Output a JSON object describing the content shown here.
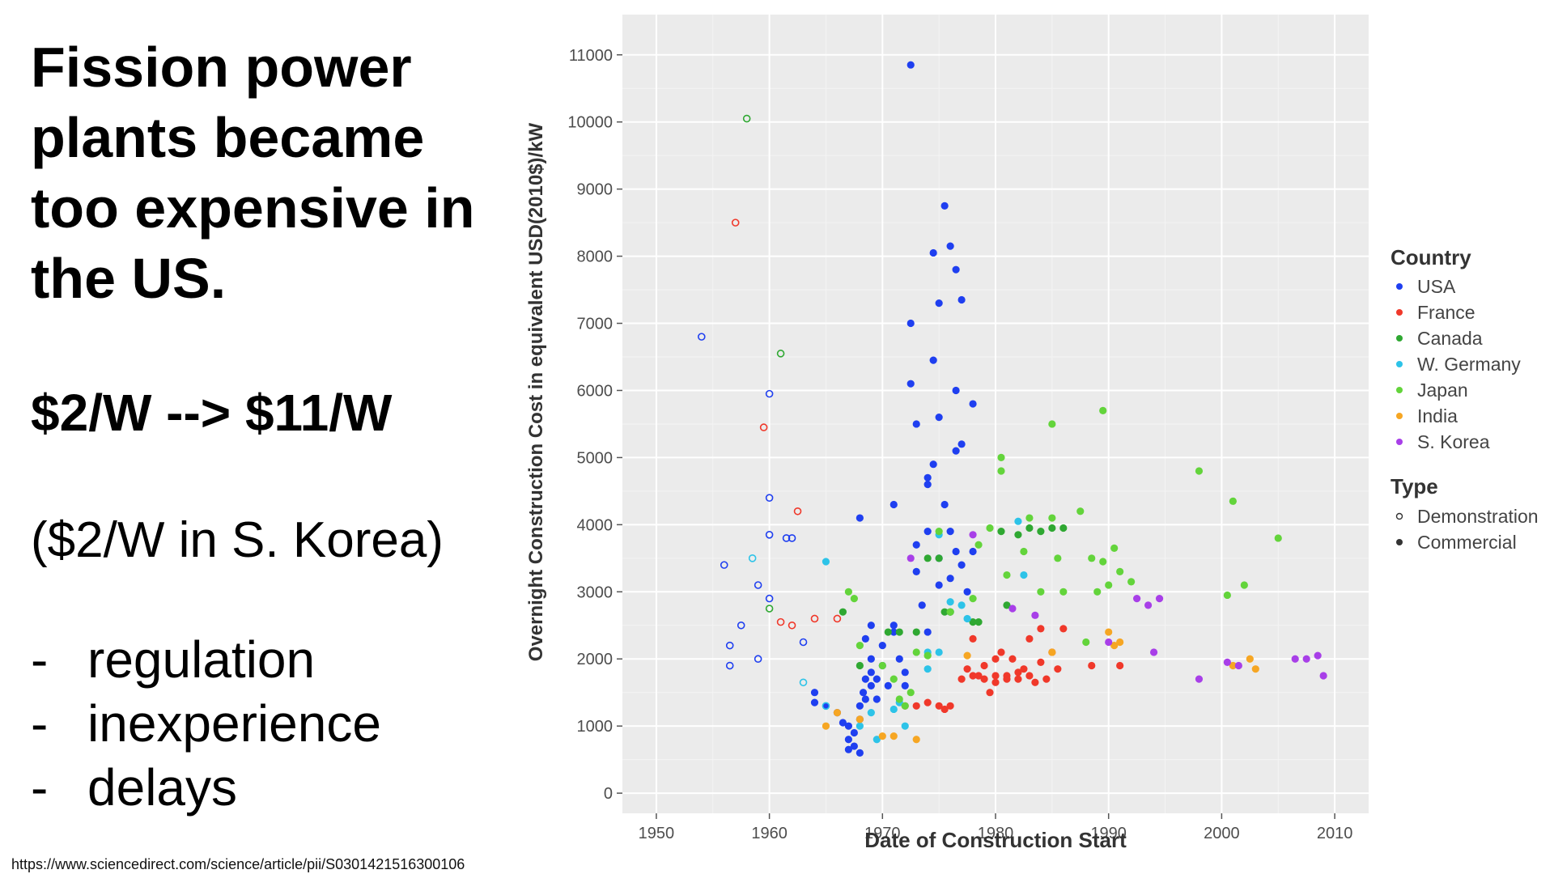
{
  "slide": {
    "headline": [
      "Fission power",
      "plants became",
      "too expensive in",
      "the US."
    ],
    "cost_change": "$2/W --> $11/W",
    "korea_note": "($2/W in S. Korea)",
    "reasons": [
      "regulation",
      "inexperience",
      "delays"
    ],
    "bullet": "-",
    "source_url": "https://www.sciencedirect.com/science/article/pii/S0301421516300106"
  },
  "chart_data": {
    "type": "scatter",
    "title": "",
    "xlabel": "Date of Construction Start",
    "ylabel": "Overnight Construction Cost in equivalent USD(2010$)/kW",
    "xlim": [
      1947,
      2013
    ],
    "ylim": [
      -300,
      11600
    ],
    "xticks": [
      1950,
      1960,
      1970,
      1980,
      1990,
      2000,
      2010
    ],
    "yticks": [
      0,
      1000,
      2000,
      3000,
      4000,
      5000,
      6000,
      7000,
      8000,
      9000,
      10000,
      11000
    ],
    "grid": true,
    "background": "#ebebeb",
    "legend": {
      "country_title": "Country",
      "type_title": "Type",
      "type_labels": [
        "Demonstration",
        "Commercial"
      ],
      "placement": "right"
    },
    "series": [
      {
        "name": "USA",
        "color": "#1f3ff0",
        "demonstration": [
          [
            1954,
            6800
          ],
          [
            1956,
            3400
          ],
          [
            1956.5,
            2200
          ],
          [
            1956.5,
            1900
          ],
          [
            1957.5,
            2500
          ],
          [
            1959,
            3100
          ],
          [
            1959,
            2000
          ],
          [
            1960,
            5950
          ],
          [
            1960,
            4400
          ],
          [
            1960,
            3850
          ],
          [
            1960,
            2900
          ],
          [
            1961.5,
            3800
          ],
          [
            1962,
            3800
          ],
          [
            1963,
            2250
          ]
        ],
        "commercial": [
          [
            1964,
            1500
          ],
          [
            1964,
            1350
          ],
          [
            1965,
            1300
          ],
          [
            1966,
            1200
          ],
          [
            1966.5,
            1050
          ],
          [
            1967,
            1000
          ],
          [
            1967,
            800
          ],
          [
            1967,
            650
          ],
          [
            1967.5,
            900
          ],
          [
            1967.5,
            700
          ],
          [
            1968,
            600
          ],
          [
            1968,
            1300
          ],
          [
            1968,
            1100
          ],
          [
            1968,
            4100
          ],
          [
            1968.3,
            1500
          ],
          [
            1968.5,
            1700
          ],
          [
            1968.5,
            1400
          ],
          [
            1968.5,
            2300
          ],
          [
            1969,
            1800
          ],
          [
            1969,
            1600
          ],
          [
            1969,
            2000
          ],
          [
            1969,
            2500
          ],
          [
            1969.5,
            1700
          ],
          [
            1969.5,
            1400
          ],
          [
            1970,
            1900
          ],
          [
            1970,
            2200
          ],
          [
            1970.5,
            1600
          ],
          [
            1971,
            2500
          ],
          [
            1971,
            2400
          ],
          [
            1971,
            4300
          ],
          [
            1971.5,
            2000
          ],
          [
            1972,
            1800
          ],
          [
            1972,
            1600
          ],
          [
            1972.5,
            10850
          ],
          [
            1972.5,
            7000
          ],
          [
            1972.5,
            6100
          ],
          [
            1973,
            5500
          ],
          [
            1973,
            3700
          ],
          [
            1973,
            3300
          ],
          [
            1973.5,
            2800
          ],
          [
            1974,
            3900
          ],
          [
            1974,
            4700
          ],
          [
            1974,
            4600
          ],
          [
            1974,
            2400
          ],
          [
            1974.5,
            6450
          ],
          [
            1974.5,
            8050
          ],
          [
            1974.5,
            4900
          ],
          [
            1975,
            5600
          ],
          [
            1975,
            7300
          ],
          [
            1975,
            3500
          ],
          [
            1975,
            3100
          ],
          [
            1975.5,
            8750
          ],
          [
            1975.5,
            4300
          ],
          [
            1976,
            8150
          ],
          [
            1976,
            3900
          ],
          [
            1976,
            3200
          ],
          [
            1976,
            2700
          ],
          [
            1976.5,
            7800
          ],
          [
            1976.5,
            6000
          ],
          [
            1976.5,
            5100
          ],
          [
            1976.5,
            3600
          ],
          [
            1977,
            5200
          ],
          [
            1977,
            7350
          ],
          [
            1977,
            3400
          ],
          [
            1977.5,
            3000
          ],
          [
            1978,
            5800
          ],
          [
            1978,
            3600
          ]
        ]
      },
      {
        "name": "France",
        "color": "#f0382a",
        "demonstration": [
          [
            1957,
            8500
          ],
          [
            1959.5,
            5450
          ],
          [
            1962.5,
            4200
          ],
          [
            1961,
            2550
          ],
          [
            1962,
            2500
          ],
          [
            1964,
            2600
          ],
          [
            1966,
            2600
          ]
        ],
        "commercial": [
          [
            1972,
            1300
          ],
          [
            1973,
            1300
          ],
          [
            1974,
            1350
          ],
          [
            1975,
            1300
          ],
          [
            1975.5,
            1250
          ],
          [
            1976,
            1300
          ],
          [
            1977,
            1700
          ],
          [
            1977.5,
            1850
          ],
          [
            1978,
            1750
          ],
          [
            1978,
            2300
          ],
          [
            1978.5,
            1750
          ],
          [
            1979,
            1700
          ],
          [
            1979,
            1900
          ],
          [
            1979.5,
            1500
          ],
          [
            1980,
            2000
          ],
          [
            1980,
            1750
          ],
          [
            1980,
            1650
          ],
          [
            1980.5,
            2100
          ],
          [
            1981,
            1700
          ],
          [
            1981,
            1750
          ],
          [
            1981.5,
            2000
          ],
          [
            1982,
            1800
          ],
          [
            1982,
            1700
          ],
          [
            1982.5,
            1850
          ],
          [
            1983,
            2300
          ],
          [
            1983,
            1750
          ],
          [
            1983.5,
            1650
          ],
          [
            1984,
            2450
          ],
          [
            1984,
            1950
          ],
          [
            1984.5,
            1700
          ],
          [
            1985,
            2100
          ],
          [
            1985.5,
            1850
          ],
          [
            1986,
            2450
          ],
          [
            1988.5,
            1900
          ],
          [
            1991,
            1900
          ]
        ]
      },
      {
        "name": "Canada",
        "color": "#2fa832",
        "demonstration": [
          [
            1958,
            10050
          ],
          [
            1960,
            2750
          ],
          [
            1961,
            6550
          ]
        ],
        "commercial": [
          [
            1966.5,
            2700
          ],
          [
            1968,
            1900
          ],
          [
            1970.5,
            2400
          ],
          [
            1971.5,
            2400
          ],
          [
            1973,
            2400
          ],
          [
            1974,
            3500
          ],
          [
            1975,
            3500
          ],
          [
            1975.5,
            2700
          ],
          [
            1976,
            2700
          ],
          [
            1978,
            2550
          ],
          [
            1978.5,
            2550
          ],
          [
            1980.5,
            3900
          ],
          [
            1981,
            2800
          ],
          [
            1982,
            3850
          ],
          [
            1983,
            3950
          ],
          [
            1984,
            3900
          ],
          [
            1985,
            3950
          ],
          [
            1986,
            3950
          ]
        ]
      },
      {
        "name": "W. Germany",
        "color": "#2dc3e8",
        "demonstration": [
          [
            1958.5,
            3500
          ],
          [
            1963,
            1650
          ],
          [
            1965,
            1300
          ]
        ],
        "commercial": [
          [
            1965,
            3450
          ],
          [
            1968,
            1000
          ],
          [
            1969,
            1200
          ],
          [
            1969.5,
            800
          ],
          [
            1971,
            1250
          ],
          [
            1971.5,
            1350
          ],
          [
            1972,
            1000
          ],
          [
            1974,
            2100
          ],
          [
            1974,
            1850
          ],
          [
            1975,
            2100
          ],
          [
            1975,
            3850
          ],
          [
            1976,
            2850
          ],
          [
            1977,
            2800
          ],
          [
            1977.5,
            2600
          ],
          [
            1982,
            4050
          ],
          [
            1982.5,
            3250
          ]
        ]
      },
      {
        "name": "Japan",
        "color": "#63d43b",
        "demonstration": [],
        "commercial": [
          [
            1967,
            3000
          ],
          [
            1967.5,
            2900
          ],
          [
            1968,
            2200
          ],
          [
            1970,
            1900
          ],
          [
            1971,
            1700
          ],
          [
            1971.5,
            1400
          ],
          [
            1972,
            1300
          ],
          [
            1972.5,
            1500
          ],
          [
            1973,
            2100
          ],
          [
            1974,
            2050
          ],
          [
            1975,
            3900
          ],
          [
            1976,
            2700
          ],
          [
            1978,
            2900
          ],
          [
            1978.5,
            3700
          ],
          [
            1979.5,
            3950
          ],
          [
            1980.5,
            5000
          ],
          [
            1980.5,
            4800
          ],
          [
            1981,
            3250
          ],
          [
            1982.5,
            3600
          ],
          [
            1983,
            4100
          ],
          [
            1984,
            3000
          ],
          [
            1985,
            4100
          ],
          [
            1985,
            5500
          ],
          [
            1985.5,
            3500
          ],
          [
            1986,
            3000
          ],
          [
            1987.5,
            4200
          ],
          [
            1988,
            2250
          ],
          [
            1988.5,
            3500
          ],
          [
            1989,
            3000
          ],
          [
            1989.5,
            5700
          ],
          [
            1989.5,
            3450
          ],
          [
            1990,
            3100
          ],
          [
            1990.5,
            3650
          ],
          [
            1991,
            3300
          ],
          [
            1992,
            3150
          ],
          [
            1998,
            4800
          ],
          [
            2000.5,
            2950
          ],
          [
            2001,
            4350
          ],
          [
            2002,
            3100
          ],
          [
            2005,
            3800
          ]
        ]
      },
      {
        "name": "India",
        "color": "#f6a623",
        "demonstration": [],
        "commercial": [
          [
            1965,
            1000
          ],
          [
            1966,
            1200
          ],
          [
            1968,
            1100
          ],
          [
            1970,
            850
          ],
          [
            1971,
            850
          ],
          [
            1973,
            800
          ],
          [
            1977.5,
            2050
          ],
          [
            1985,
            2100
          ],
          [
            1990,
            2400
          ],
          [
            1990.5,
            2200
          ],
          [
            1991,
            2250
          ],
          [
            2001,
            1900
          ],
          [
            2002.5,
            2000
          ],
          [
            2003,
            1850
          ]
        ]
      },
      {
        "name": "S. Korea",
        "color": "#a83fe8",
        "demonstration": [],
        "commercial": [
          [
            1972.5,
            3500
          ],
          [
            1978,
            3850
          ],
          [
            1981.5,
            2750
          ],
          [
            1983.5,
            2650
          ],
          [
            1990,
            2250
          ],
          [
            1992.5,
            2900
          ],
          [
            1993.5,
            2800
          ],
          [
            1994.5,
            2900
          ],
          [
            1994,
            2100
          ],
          [
            1998,
            1700
          ],
          [
            2000.5,
            1950
          ],
          [
            2001.5,
            1900
          ],
          [
            2006.5,
            2000
          ],
          [
            2007.5,
            2000
          ],
          [
            2008.5,
            2050
          ],
          [
            2009,
            1750
          ]
        ]
      }
    ]
  }
}
